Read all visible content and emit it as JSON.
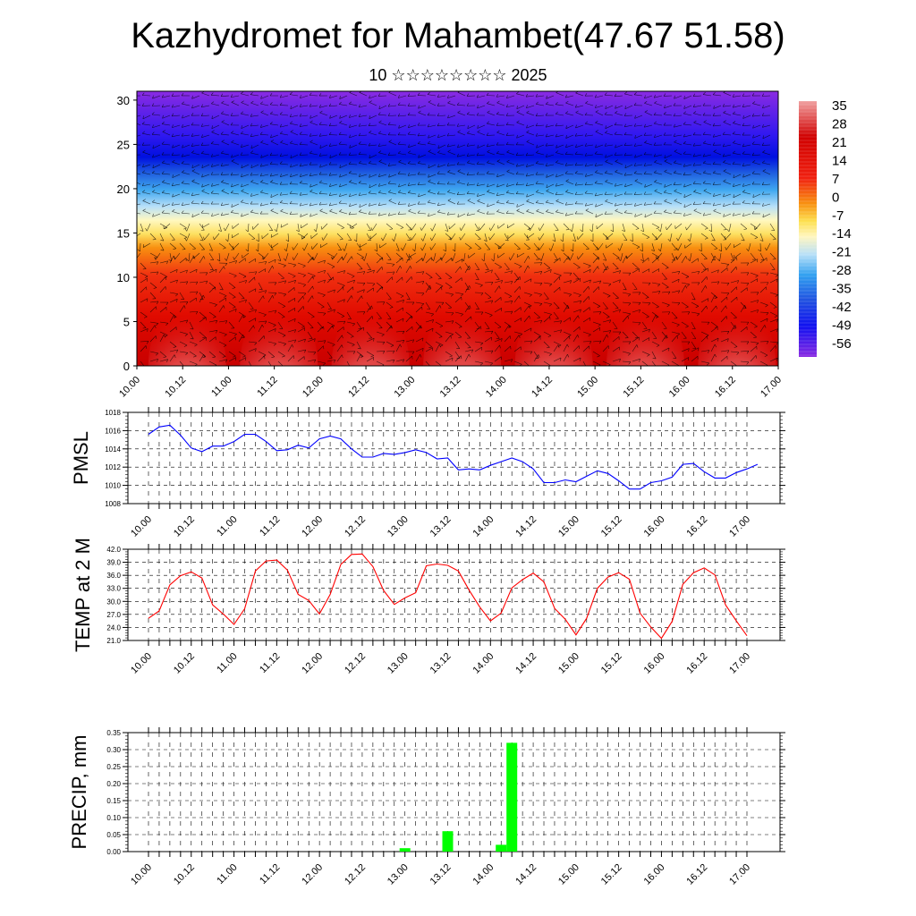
{
  "header": {
    "title": "Kazhydromet for Mahambet(47.67 51.58)",
    "subtitle": "10 ☆☆☆☆☆☆☆☆ 2025"
  },
  "colors": {
    "pmsl_line": "#0000ff",
    "temp_line": "#ff0000",
    "precip_bar": "#00ff00",
    "grid": "#000000"
  },
  "chart_data": [
    {
      "type": "heatmap",
      "name": "vertical cross-section",
      "y_ticks": [
        "0",
        "5",
        "10",
        "15",
        "20",
        "25",
        "30"
      ],
      "ylim": [
        0,
        31
      ],
      "x_ticks": [
        "10.00",
        "10.12",
        "11.00",
        "11.12",
        "12.00",
        "12.12",
        "13.00",
        "13.12",
        "14.00",
        "14.12",
        "15.00",
        "15.12",
        "16.00",
        "16.12",
        "17.00"
      ],
      "colorbar_labels": [
        "35",
        "28",
        "21",
        "14",
        "7",
        "0",
        "-7",
        "-14",
        "-21",
        "-28",
        "-35",
        "-42",
        "-49",
        "-56"
      ],
      "colorbar_range": [
        -60,
        38
      ],
      "overlay": "wind barbs"
    },
    {
      "type": "line",
      "ylabel": "PMSL",
      "ylim": [
        1008,
        1018
      ],
      "y_ticks": [
        "1008",
        "1010",
        "1012",
        "1014",
        "1016",
        "1018"
      ],
      "x_ticks": [
        "10.00",
        "10.12",
        "11.00",
        "11.12",
        "12.00",
        "12.12",
        "13.00",
        "13.12",
        "14.00",
        "14.12",
        "15.00",
        "15.12",
        "16.00",
        "16.12",
        "17.00"
      ],
      "values": [
        1015.6,
        1016.4,
        1016.6,
        1015.5,
        1014.1,
        1013.7,
        1014.3,
        1014.3,
        1014.8,
        1015.6,
        1015.6,
        1014.8,
        1013.8,
        1013.9,
        1014.4,
        1014.1,
        1015.1,
        1015.4,
        1015.1,
        1014.0,
        1013.1,
        1013.1,
        1013.5,
        1013.4,
        1013.6,
        1013.9,
        1013.6,
        1012.9,
        1013.0,
        1011.7,
        1011.8,
        1011.7,
        1012.2,
        1012.6,
        1013.0,
        1012.6,
        1011.8,
        1010.3,
        1010.3,
        1010.6,
        1010.4,
        1011.0,
        1011.6,
        1011.3,
        1010.5,
        1009.6,
        1009.6,
        1010.3,
        1010.5,
        1010.9,
        1012.3,
        1012.4,
        1011.5,
        1010.8,
        1010.8,
        1011.4,
        1011.8,
        1012.3
      ]
    },
    {
      "type": "line",
      "ylabel": "TEMP at 2 M",
      "ylim": [
        21,
        42
      ],
      "y_ticks": [
        "21.0",
        "24.0",
        "27.0",
        "30.0",
        "33.0",
        "36.0",
        "39.0",
        "42.0"
      ],
      "x_ticks": [
        "10.00",
        "10.12",
        "11.00",
        "11.12",
        "12.00",
        "12.12",
        "13.00",
        "13.12",
        "14.00",
        "14.12",
        "15.00",
        "15.12",
        "16.00",
        "16.12",
        "17.00"
      ],
      "values": [
        26.1,
        27.8,
        33.8,
        35.9,
        36.8,
        35.4,
        29.2,
        27.1,
        24.7,
        28.3,
        37.0,
        39.3,
        39.5,
        37.2,
        31.6,
        30.2,
        27.1,
        31.6,
        38.5,
        40.8,
        40.9,
        38.0,
        32.5,
        29.3,
        30.8,
        32.0,
        38.2,
        38.6,
        38.3,
        37.0,
        32.6,
        28.7,
        25.5,
        27.3,
        33.1,
        35.0,
        36.5,
        34.5,
        28.4,
        25.9,
        22.3,
        26.1,
        33.0,
        35.6,
        36.6,
        35.1,
        27.3,
        24.1,
        21.5,
        25.4,
        33.9,
        36.6,
        37.7,
        36.1,
        29.2,
        25.5,
        22.1
      ]
    },
    {
      "type": "bar",
      "ylabel": "PRECIP, mm",
      "ylim": [
        0,
        0.35
      ],
      "y_ticks": [
        "0.00",
        "0.05",
        "0.10",
        "0.15",
        "0.20",
        "0.25",
        "0.30",
        "0.35"
      ],
      "x_ticks": [
        "10.00",
        "10.12",
        "11.00",
        "11.12",
        "12.00",
        "12.12",
        "13.00",
        "13.12",
        "14.00",
        "14.12",
        "15.00",
        "15.12",
        "16.00",
        "16.12",
        "17.00"
      ],
      "bars": [
        {
          "x_hour": 72,
          "value": 0.01
        },
        {
          "x_hour": 84,
          "value": 0.06
        },
        {
          "x_hour": 99,
          "value": 0.02
        },
        {
          "x_hour": 102,
          "value": 0.32
        }
      ]
    }
  ]
}
